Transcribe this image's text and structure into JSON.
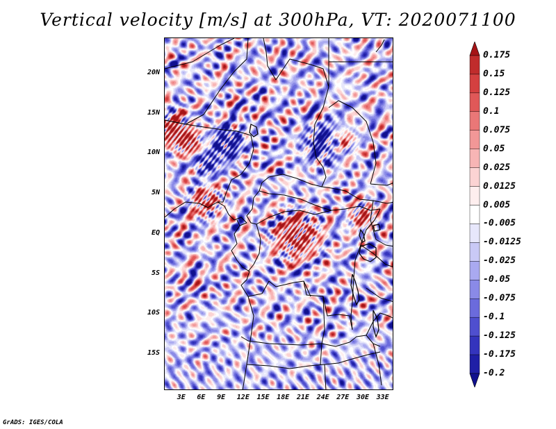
{
  "title": "Vertical velocity [m/s] at 300hPa, VT: 2020071100",
  "map": {
    "variable": "Vertical velocity",
    "units": "m/s",
    "level": "300hPa",
    "valid_time": "2020071100",
    "lat_range": [
      -19.5,
      24.5
    ],
    "lon_range": [
      0,
      34.5
    ],
    "lat_labels": [
      {
        "text": "20N",
        "lat": 20
      },
      {
        "text": "15N",
        "lat": 15
      },
      {
        "text": "10N",
        "lat": 10
      },
      {
        "text": "5N",
        "lat": 5
      },
      {
        "text": "EQ",
        "lat": 0
      },
      {
        "text": "5S",
        "lat": -5
      },
      {
        "text": "10S",
        "lat": -10
      },
      {
        "text": "15S",
        "lat": -15
      }
    ],
    "lon_labels": [
      {
        "text": "3E",
        "lon": 3
      },
      {
        "text": "6E",
        "lon": 6
      },
      {
        "text": "9E",
        "lon": 9
      },
      {
        "text": "12E",
        "lon": 12
      },
      {
        "text": "15E",
        "lon": 15
      },
      {
        "text": "18E",
        "lon": 18
      },
      {
        "text": "21E",
        "lon": 21
      },
      {
        "text": "24E",
        "lon": 24
      },
      {
        "text": "27E",
        "lon": 27
      },
      {
        "text": "30E",
        "lon": 30
      },
      {
        "text": "33E",
        "lon": 33
      }
    ]
  },
  "colorbar": {
    "labels": [
      "0.175",
      "0.15",
      "0.125",
      "0.1",
      "0.075",
      "0.05",
      "0.025",
      "0.0125",
      "0.005",
      "-0.005",
      "-0.0125",
      "-0.025",
      "-0.05",
      "-0.075",
      "-0.1",
      "-0.125",
      "-0.175",
      "-0.2"
    ],
    "colors": [
      "#a51416",
      "#c02c2c",
      "#d44040",
      "#e05858",
      "#ea7777",
      "#f29797",
      "#f7b5b5",
      "#fbd3d3",
      "#feeeee",
      "#ffffff",
      "#e7e7fb",
      "#c9c9f6",
      "#a9a9f0",
      "#8a8ae7",
      "#6b6bdc",
      "#4f4fcf",
      "#3434bd",
      "#1f1fa6",
      "#10108e"
    ]
  },
  "credit": "GrADS: IGES/COLA"
}
